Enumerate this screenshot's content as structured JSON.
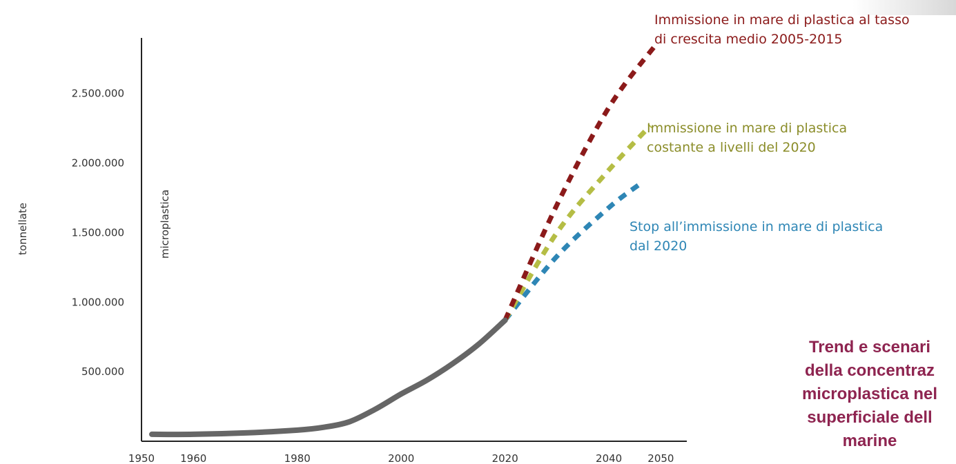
{
  "chart_data": {
    "type": "line",
    "title": "",
    "ylabel": "tonnellate",
    "inner_label": "microplastica",
    "x_ticks": [
      "1950",
      "1960",
      "1980",
      "2000",
      "2020",
      "2040",
      "2050"
    ],
    "y_ticks": [
      "500.000",
      "1.000.000",
      "1.500.000",
      "2.000.000",
      "2.500.000"
    ],
    "xlim": [
      1950,
      2055
    ],
    "ylim": [
      0,
      2900000
    ],
    "series": [
      {
        "color": "#666666",
        "style": "solid",
        "x": [
          1952,
          1960,
          1970,
          1980,
          1985,
          1990,
          1995,
          2000,
          2005,
          2010,
          2015,
          2020
        ],
        "y": [
          50000,
          50000,
          60000,
          80000,
          100000,
          140000,
          230000,
          340000,
          440000,
          560000,
          700000,
          870000
        ]
      },
      {
        "color": "#8b1a1a",
        "style": "dashed",
        "x": [
          2020,
          2030,
          2040,
          2049
        ],
        "y": [
          870000,
          1700000,
          2400000,
          2850000
        ]
      },
      {
        "color": "#b5bd45",
        "style": "dashed",
        "x": [
          2020,
          2030,
          2040,
          2048
        ],
        "y": [
          870000,
          1500000,
          1950000,
          2270000
        ]
      },
      {
        "color": "#2e86b5",
        "style": "dashed",
        "x": [
          2020,
          2030,
          2040,
          2046
        ],
        "y": [
          870000,
          1330000,
          1680000,
          1850000
        ]
      }
    ],
    "annotations": [
      {
        "lines": [
          "Immissione in mare di plastica al tasso",
          "di crescita medio 2005-2015"
        ],
        "color": "#8b1a1a"
      },
      {
        "lines": [
          "Immissione in mare di plastica",
          "costante a livelli del 2020"
        ],
        "color": "#8b8d2a"
      },
      {
        "lines": [
          "Stop all’immissione in mare di plastica",
          "dal 2020"
        ],
        "color": "#2e86b5"
      }
    ]
  },
  "caption": {
    "lines": [
      "Trend e scenari",
      "della concentraz",
      "microplastica nel",
      "superficiale dell",
      "marine"
    ]
  }
}
